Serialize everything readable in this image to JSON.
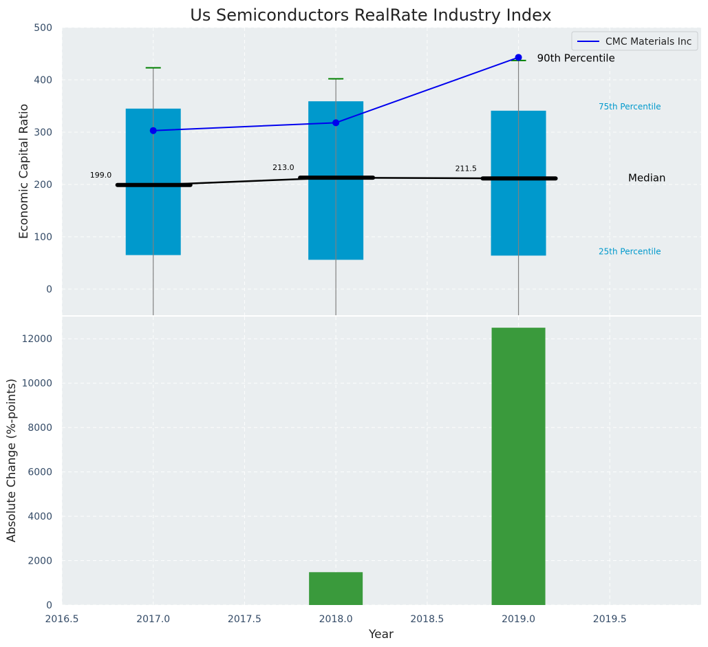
{
  "chart_data": [
    {
      "type": "box",
      "title": "Us Semiconductors RealRate Industry Index",
      "ylabel": "Economic Capital Ratio",
      "xlabel": "",
      "xlim": [
        2016.5,
        2020.0
      ],
      "ylim": [
        -50,
        500
      ],
      "yticks": [
        "0",
        "100",
        "200",
        "300",
        "400",
        "500"
      ],
      "grid": true,
      "legend": {
        "position": "top-right",
        "entries": [
          "CMC Materials Inc"
        ]
      },
      "colors": {
        "box": "#0099cc",
        "company_line": "#0000ee",
        "median": "#000000",
        "whisker_cap": "#008000",
        "whisker": "#808080"
      },
      "boxes": [
        {
          "x": 2017,
          "p25": 65,
          "p75": 345,
          "median": 199.0,
          "median_label": "199.0",
          "p90": 423
        },
        {
          "x": 2018,
          "p25": 56,
          "p75": 359,
          "median": 213.0,
          "median_label": "213.0",
          "p90": 402
        },
        {
          "x": 2019,
          "p25": 64,
          "p75": 341,
          "median": 211.5,
          "median_label": "211.5",
          "p90": 437
        }
      ],
      "series": [
        {
          "name": "CMC Materials Inc",
          "x": [
            2017,
            2018,
            2019
          ],
          "values": [
            303,
            318,
            443
          ]
        }
      ],
      "annotations": {
        "p90": "90th Percentile",
        "p75": "75th Percentile",
        "median": "Median",
        "p25": "25th Percentile"
      }
    },
    {
      "type": "bar",
      "title": "",
      "xlabel": "Year",
      "ylabel": "Absolute Change (%-points)",
      "xlim": [
        2016.5,
        2020.0
      ],
      "ylim": [
        0,
        13000
      ],
      "xticks": [
        "2016.5",
        "2017.0",
        "2017.5",
        "2018.0",
        "2018.5",
        "2019.0",
        "2019.5"
      ],
      "yticks": [
        "0",
        "2000",
        "4000",
        "6000",
        "8000",
        "10000",
        "12000"
      ],
      "grid": true,
      "color": "#3a9a3c",
      "categories": [
        2017,
        2018,
        2019
      ],
      "values": [
        0,
        1480,
        12500
      ]
    }
  ]
}
